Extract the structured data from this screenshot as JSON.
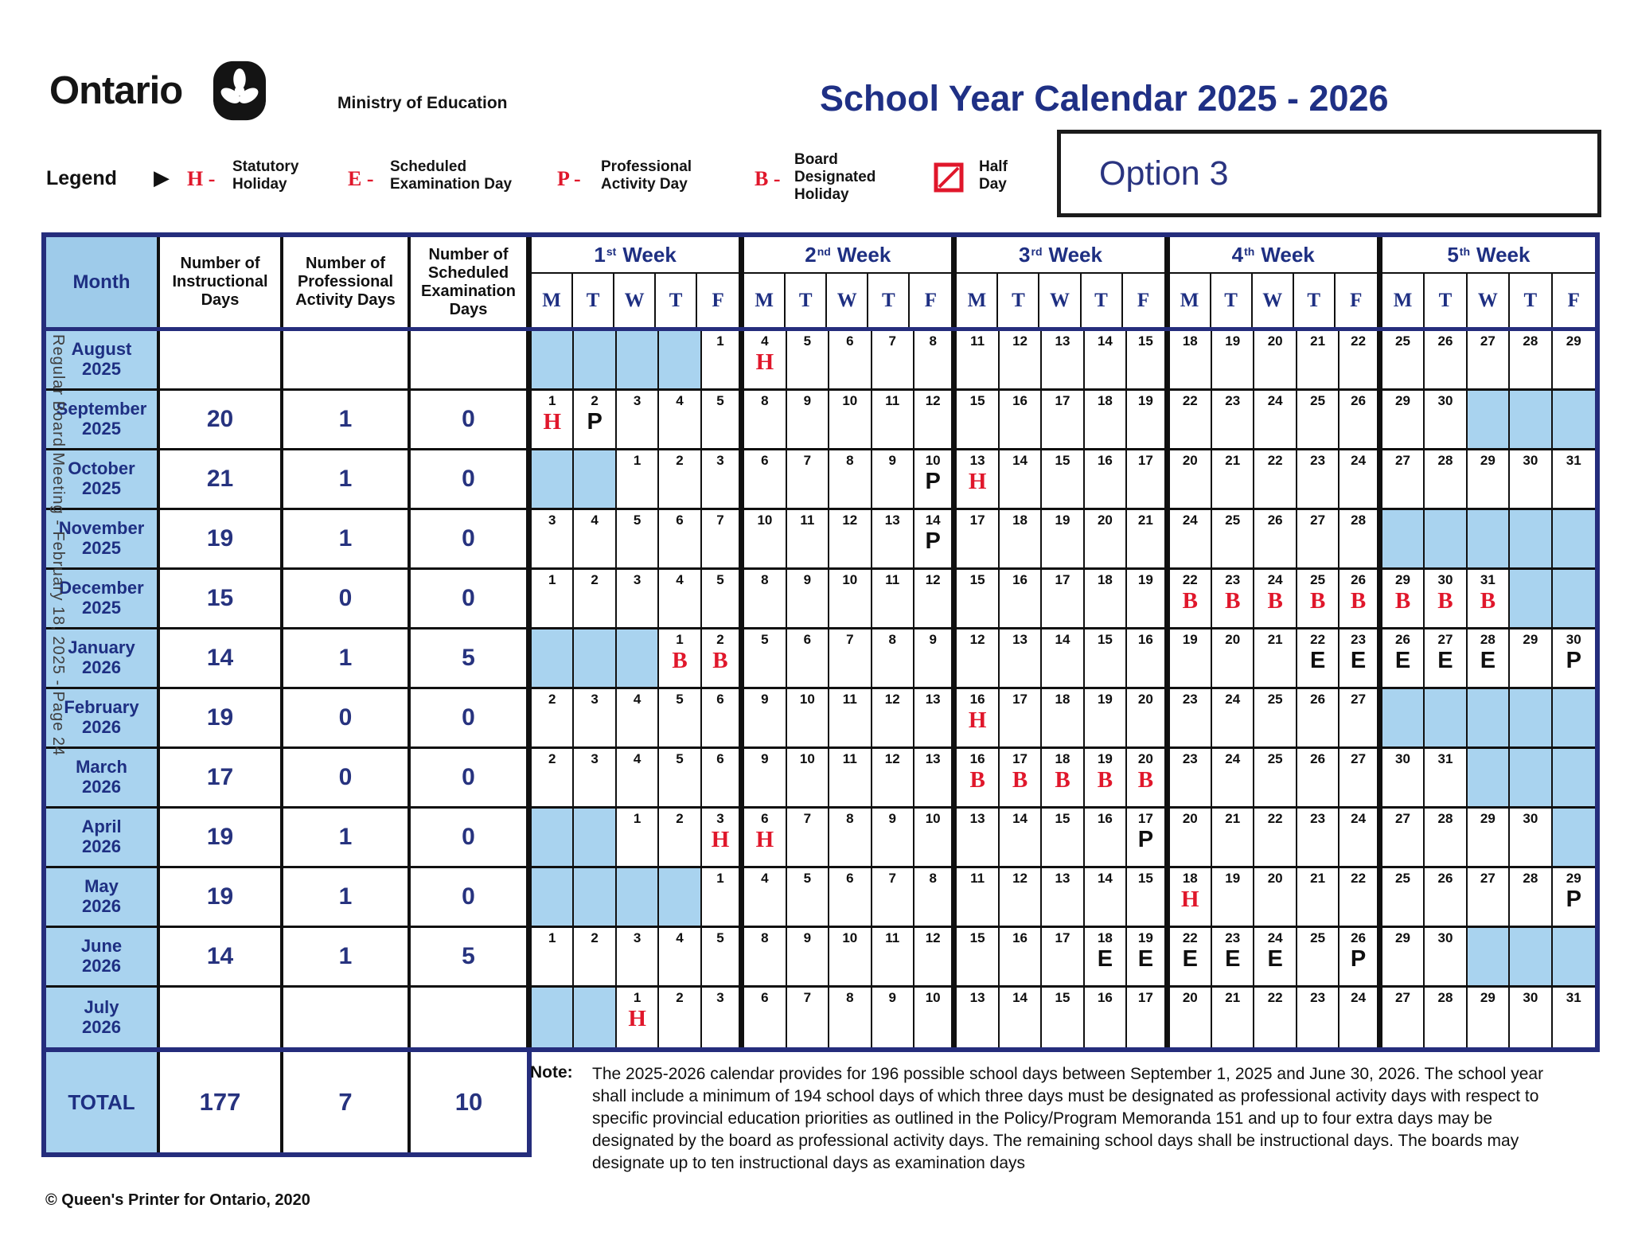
{
  "header": {
    "logo_text": "Ontario",
    "ministry": "Ministry of Education",
    "title": "School Year Calendar 2025 - 2026",
    "option_label": "Option 3"
  },
  "legend": {
    "label": "Legend",
    "items": [
      {
        "symbol": "H -",
        "label": "Statutory\nHoliday"
      },
      {
        "symbol": "E -",
        "label": "Scheduled\nExamination Day"
      },
      {
        "symbol": "P -",
        "label": "Professional\nActivity Day"
      },
      {
        "symbol": "B -",
        "label": "Board\nDesignated\nHoliday"
      },
      {
        "symbol": "half-day-icon",
        "label": "Half\nDay"
      }
    ]
  },
  "colors": {
    "navy": "#252d7c",
    "navy_text": "#1e2f82",
    "light_blue": "#a9d3ef",
    "red": "#e0172b"
  },
  "table": {
    "col_headers": [
      "Month",
      "Number of Instructional Days",
      "Number of Professional Activity Days",
      "Number of Scheduled Examination Days"
    ],
    "week_headers": [
      {
        "ord": "1",
        "suffix": "st",
        "word": "Week"
      },
      {
        "ord": "2",
        "suffix": "nd",
        "word": "Week"
      },
      {
        "ord": "3",
        "suffix": "rd",
        "word": "Week"
      },
      {
        "ord": "4",
        "suffix": "th",
        "word": "Week"
      },
      {
        "ord": "5",
        "suffix": "th",
        "word": "Week"
      }
    ],
    "day_letters": [
      "M",
      "T",
      "W",
      "T",
      "F"
    ],
    "months": [
      {
        "name": "August",
        "year": "2025",
        "instructional": "",
        "pa": "",
        "exam": "",
        "days": [
          {
            "s": true
          },
          {
            "s": true
          },
          {
            "s": true
          },
          {
            "s": true
          },
          {
            "n": "1"
          },
          {
            "n": "4",
            "m": "H"
          },
          {
            "n": "5"
          },
          {
            "n": "6"
          },
          {
            "n": "7"
          },
          {
            "n": "8"
          },
          {
            "n": "11"
          },
          {
            "n": "12"
          },
          {
            "n": "13"
          },
          {
            "n": "14"
          },
          {
            "n": "15"
          },
          {
            "n": "18"
          },
          {
            "n": "19"
          },
          {
            "n": "20"
          },
          {
            "n": "21"
          },
          {
            "n": "22"
          },
          {
            "n": "25"
          },
          {
            "n": "26"
          },
          {
            "n": "27"
          },
          {
            "n": "28"
          },
          {
            "n": "29"
          }
        ]
      },
      {
        "name": "September",
        "year": "2025",
        "instructional": "20",
        "pa": "1",
        "exam": "0",
        "days": [
          {
            "n": "1",
            "m": "H"
          },
          {
            "n": "2",
            "m": "P"
          },
          {
            "n": "3"
          },
          {
            "n": "4"
          },
          {
            "n": "5"
          },
          {
            "n": "8"
          },
          {
            "n": "9"
          },
          {
            "n": "10"
          },
          {
            "n": "11"
          },
          {
            "n": "12"
          },
          {
            "n": "15"
          },
          {
            "n": "16"
          },
          {
            "n": "17"
          },
          {
            "n": "18"
          },
          {
            "n": "19"
          },
          {
            "n": "22"
          },
          {
            "n": "23"
          },
          {
            "n": "24"
          },
          {
            "n": "25"
          },
          {
            "n": "26"
          },
          {
            "n": "29"
          },
          {
            "n": "30"
          },
          {
            "s": true
          },
          {
            "s": true
          },
          {
            "s": true
          }
        ]
      },
      {
        "name": "October",
        "year": "2025",
        "instructional": "21",
        "pa": "1",
        "exam": "0",
        "days": [
          {
            "s": true
          },
          {
            "s": true
          },
          {
            "n": "1"
          },
          {
            "n": "2"
          },
          {
            "n": "3"
          },
          {
            "n": "6"
          },
          {
            "n": "7"
          },
          {
            "n": "8"
          },
          {
            "n": "9"
          },
          {
            "n": "10",
            "m": "P"
          },
          {
            "n": "13",
            "m": "H"
          },
          {
            "n": "14"
          },
          {
            "n": "15"
          },
          {
            "n": "16"
          },
          {
            "n": "17"
          },
          {
            "n": "20"
          },
          {
            "n": "21"
          },
          {
            "n": "22"
          },
          {
            "n": "23"
          },
          {
            "n": "24"
          },
          {
            "n": "27"
          },
          {
            "n": "28"
          },
          {
            "n": "29"
          },
          {
            "n": "30"
          },
          {
            "n": "31"
          }
        ]
      },
      {
        "name": "November",
        "year": "2025",
        "instructional": "19",
        "pa": "1",
        "exam": "0",
        "days": [
          {
            "n": "3"
          },
          {
            "n": "4"
          },
          {
            "n": "5"
          },
          {
            "n": "6"
          },
          {
            "n": "7"
          },
          {
            "n": "10"
          },
          {
            "n": "11"
          },
          {
            "n": "12"
          },
          {
            "n": "13"
          },
          {
            "n": "14",
            "m": "P"
          },
          {
            "n": "17"
          },
          {
            "n": "18"
          },
          {
            "n": "19"
          },
          {
            "n": "20"
          },
          {
            "n": "21"
          },
          {
            "n": "24"
          },
          {
            "n": "25"
          },
          {
            "n": "26"
          },
          {
            "n": "27"
          },
          {
            "n": "28"
          },
          {
            "s": true
          },
          {
            "s": true
          },
          {
            "s": true
          },
          {
            "s": true
          },
          {
            "s": true
          }
        ]
      },
      {
        "name": "December",
        "year": "2025",
        "instructional": "15",
        "pa": "0",
        "exam": "0",
        "days": [
          {
            "n": "1"
          },
          {
            "n": "2"
          },
          {
            "n": "3"
          },
          {
            "n": "4"
          },
          {
            "n": "5"
          },
          {
            "n": "8"
          },
          {
            "n": "9"
          },
          {
            "n": "10"
          },
          {
            "n": "11"
          },
          {
            "n": "12"
          },
          {
            "n": "15"
          },
          {
            "n": "16"
          },
          {
            "n": "17"
          },
          {
            "n": "18"
          },
          {
            "n": "19"
          },
          {
            "n": "22",
            "m": "B"
          },
          {
            "n": "23",
            "m": "B"
          },
          {
            "n": "24",
            "m": "B"
          },
          {
            "n": "25",
            "m": "B"
          },
          {
            "n": "26",
            "m": "B"
          },
          {
            "n": "29",
            "m": "B"
          },
          {
            "n": "30",
            "m": "B"
          },
          {
            "n": "31",
            "m": "B"
          },
          {
            "s": true
          },
          {
            "s": true
          }
        ]
      },
      {
        "name": "January",
        "year": "2026",
        "instructional": "14",
        "pa": "1",
        "exam": "5",
        "days": [
          {
            "s": true
          },
          {
            "s": true
          },
          {
            "s": true
          },
          {
            "n": "1",
            "m": "B"
          },
          {
            "n": "2",
            "m": "B"
          },
          {
            "n": "5"
          },
          {
            "n": "6"
          },
          {
            "n": "7"
          },
          {
            "n": "8"
          },
          {
            "n": "9"
          },
          {
            "n": "12"
          },
          {
            "n": "13"
          },
          {
            "n": "14"
          },
          {
            "n": "15"
          },
          {
            "n": "16"
          },
          {
            "n": "19"
          },
          {
            "n": "20"
          },
          {
            "n": "21"
          },
          {
            "n": "22",
            "m": "E"
          },
          {
            "n": "23",
            "m": "E"
          },
          {
            "n": "26",
            "m": "E"
          },
          {
            "n": "27",
            "m": "E"
          },
          {
            "n": "28",
            "m": "E"
          },
          {
            "n": "29"
          },
          {
            "n": "30",
            "m": "P"
          }
        ]
      },
      {
        "name": "February",
        "year": "2026",
        "instructional": "19",
        "pa": "0",
        "exam": "0",
        "days": [
          {
            "n": "2"
          },
          {
            "n": "3"
          },
          {
            "n": "4"
          },
          {
            "n": "5"
          },
          {
            "n": "6"
          },
          {
            "n": "9"
          },
          {
            "n": "10"
          },
          {
            "n": "11"
          },
          {
            "n": "12"
          },
          {
            "n": "13"
          },
          {
            "n": "16",
            "m": "H"
          },
          {
            "n": "17"
          },
          {
            "n": "18"
          },
          {
            "n": "19"
          },
          {
            "n": "20"
          },
          {
            "n": "23"
          },
          {
            "n": "24"
          },
          {
            "n": "25"
          },
          {
            "n": "26"
          },
          {
            "n": "27"
          },
          {
            "s": true
          },
          {
            "s": true
          },
          {
            "s": true
          },
          {
            "s": true
          },
          {
            "s": true
          }
        ]
      },
      {
        "name": "March",
        "year": "2026",
        "instructional": "17",
        "pa": "0",
        "exam": "0",
        "days": [
          {
            "n": "2"
          },
          {
            "n": "3"
          },
          {
            "n": "4"
          },
          {
            "n": "5"
          },
          {
            "n": "6"
          },
          {
            "n": "9"
          },
          {
            "n": "10"
          },
          {
            "n": "11"
          },
          {
            "n": "12"
          },
          {
            "n": "13"
          },
          {
            "n": "16",
            "m": "B"
          },
          {
            "n": "17",
            "m": "B"
          },
          {
            "n": "18",
            "m": "B"
          },
          {
            "n": "19",
            "m": "B"
          },
          {
            "n": "20",
            "m": "B"
          },
          {
            "n": "23"
          },
          {
            "n": "24"
          },
          {
            "n": "25"
          },
          {
            "n": "26"
          },
          {
            "n": "27"
          },
          {
            "n": "30"
          },
          {
            "n": "31"
          },
          {
            "s": true
          },
          {
            "s": true
          },
          {
            "s": true
          }
        ]
      },
      {
        "name": "April",
        "year": "2026",
        "instructional": "19",
        "pa": "1",
        "exam": "0",
        "days": [
          {
            "s": true
          },
          {
            "s": true
          },
          {
            "n": "1"
          },
          {
            "n": "2"
          },
          {
            "n": "3",
            "m": "H"
          },
          {
            "n": "6",
            "m": "H"
          },
          {
            "n": "7"
          },
          {
            "n": "8"
          },
          {
            "n": "9"
          },
          {
            "n": "10"
          },
          {
            "n": "13"
          },
          {
            "n": "14"
          },
          {
            "n": "15"
          },
          {
            "n": "16"
          },
          {
            "n": "17",
            "m": "P"
          },
          {
            "n": "20"
          },
          {
            "n": "21"
          },
          {
            "n": "22"
          },
          {
            "n": "23"
          },
          {
            "n": "24"
          },
          {
            "n": "27"
          },
          {
            "n": "28"
          },
          {
            "n": "29"
          },
          {
            "n": "30"
          },
          {
            "s": true
          }
        ]
      },
      {
        "name": "May",
        "year": "2026",
        "instructional": "19",
        "pa": "1",
        "exam": "0",
        "days": [
          {
            "s": true
          },
          {
            "s": true
          },
          {
            "s": true
          },
          {
            "s": true
          },
          {
            "n": "1"
          },
          {
            "n": "4"
          },
          {
            "n": "5"
          },
          {
            "n": "6"
          },
          {
            "n": "7"
          },
          {
            "n": "8"
          },
          {
            "n": "11"
          },
          {
            "n": "12"
          },
          {
            "n": "13"
          },
          {
            "n": "14"
          },
          {
            "n": "15"
          },
          {
            "n": "18",
            "m": "H"
          },
          {
            "n": "19"
          },
          {
            "n": "20"
          },
          {
            "n": "21"
          },
          {
            "n": "22"
          },
          {
            "n": "25"
          },
          {
            "n": "26"
          },
          {
            "n": "27"
          },
          {
            "n": "28"
          },
          {
            "n": "29",
            "m": "P"
          }
        ]
      },
      {
        "name": "June",
        "year": "2026",
        "instructional": "14",
        "pa": "1",
        "exam": "5",
        "days": [
          {
            "n": "1"
          },
          {
            "n": "2"
          },
          {
            "n": "3"
          },
          {
            "n": "4"
          },
          {
            "n": "5"
          },
          {
            "n": "8"
          },
          {
            "n": "9"
          },
          {
            "n": "10"
          },
          {
            "n": "11"
          },
          {
            "n": "12"
          },
          {
            "n": "15"
          },
          {
            "n": "16"
          },
          {
            "n": "17"
          },
          {
            "n": "18",
            "m": "E"
          },
          {
            "n": "19",
            "m": "E"
          },
          {
            "n": "22",
            "m": "E"
          },
          {
            "n": "23",
            "m": "E"
          },
          {
            "n": "24",
            "m": "E"
          },
          {
            "n": "25"
          },
          {
            "n": "26",
            "m": "P"
          },
          {
            "n": "29"
          },
          {
            "n": "30"
          },
          {
            "s": true
          },
          {
            "s": true
          },
          {
            "s": true
          }
        ]
      },
      {
        "name": "July",
        "year": "2026",
        "instructional": "",
        "pa": "",
        "exam": "",
        "days": [
          {
            "s": true
          },
          {
            "s": true
          },
          {
            "n": "1",
            "m": "H"
          },
          {
            "n": "2"
          },
          {
            "n": "3"
          },
          {
            "n": "6"
          },
          {
            "n": "7"
          },
          {
            "n": "8"
          },
          {
            "n": "9"
          },
          {
            "n": "10"
          },
          {
            "n": "13"
          },
          {
            "n": "14"
          },
          {
            "n": "15"
          },
          {
            "n": "16"
          },
          {
            "n": "17"
          },
          {
            "n": "20"
          },
          {
            "n": "21"
          },
          {
            "n": "22"
          },
          {
            "n": "23"
          },
          {
            "n": "24"
          },
          {
            "n": "27"
          },
          {
            "n": "28"
          },
          {
            "n": "29"
          },
          {
            "n": "30"
          },
          {
            "n": "31"
          }
        ]
      }
    ],
    "total": {
      "label": "TOTAL",
      "instructional": "177",
      "pa": "7",
      "exam": "10"
    }
  },
  "note": {
    "label": "Note:",
    "text": "The 2025-2026 calendar provides for 196 possible school days between September 1, 2025 and June 30, 2026. The school year shall include a minimum of 194 school days of which three days must be designated as professional activity days with respect to specific provincial education priorities as outlined in the Policy/Program Memoranda 151 and up to four extra days may be designated by the board as professional activity days.  The remaining school days shall be instructional days.  The boards may designate up to ten instructional days as examination days"
  },
  "footer": {
    "copyright": "© Queen's Printer for Ontario, 2020"
  },
  "sidebar_text": "Regular Board Meeting - February 18, 2025 - Page 24"
}
